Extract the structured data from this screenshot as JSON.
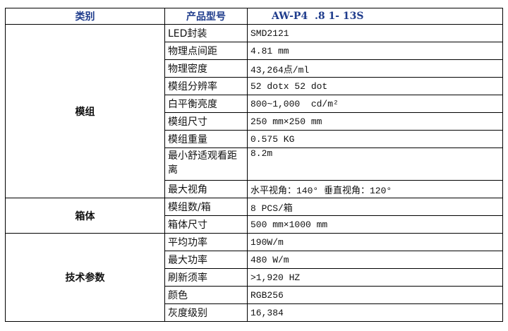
{
  "header": {
    "category": "类别",
    "model_label": "产品型号",
    "model_value": "AW-P4  .8 1- 13S"
  },
  "groups": [
    {
      "name": "模组",
      "rows": [
        {
          "label": "LED封装",
          "value": "SMD2121"
        },
        {
          "label": "物理点间距",
          "value": "4.81 mm"
        },
        {
          "label": "物理密度",
          "value": "43,264点/ml"
        },
        {
          "label": "模组分辨率",
          "value": "52 dotx 52 dot"
        },
        {
          "label": "白平衡亮度",
          "value": "800~1,000  cd/m²"
        },
        {
          "label": "模组尺寸",
          "value": "250 mm×250 mm"
        },
        {
          "label": "模组重量",
          "value": "0.575 KG"
        },
        {
          "label": "最小舒适观看距离",
          "value": "8.2m"
        },
        {
          "label": "最大视角",
          "value": "水平视角：140° 垂直视角：120°"
        }
      ]
    },
    {
      "name": "箱体",
      "rows": [
        {
          "label": "模组数/箱",
          "value": "8 PCS/箱"
        },
        {
          "label": "箱体尺寸",
          "value": "500 mm×1000 mm"
        }
      ]
    },
    {
      "name": "技术参数",
      "rows": [
        {
          "label": "平均功率",
          "value": "190W/m"
        },
        {
          "label": "最大功率",
          "value": "480 W/m"
        },
        {
          "label": "刷新须率",
          "value": ">1,920 HZ"
        },
        {
          "label": "颜色",
          "value": "RGB256"
        },
        {
          "label": "灰度级别",
          "value": "16,384"
        }
      ]
    }
  ]
}
